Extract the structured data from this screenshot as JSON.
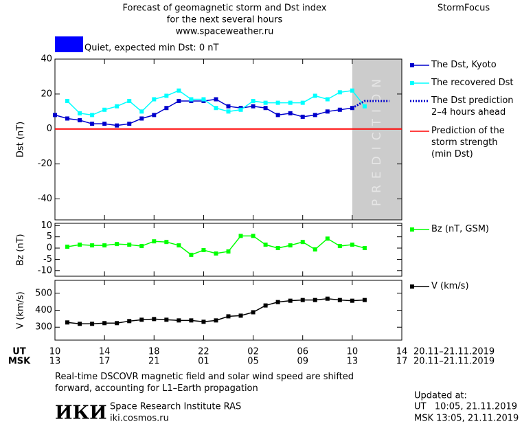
{
  "header": {
    "title_lines": [
      "Forecast of geomagnetic storm and Dst index",
      "for the next several hours",
      "www.spaceweather.ru"
    ],
    "brand": "StormFocus",
    "status": {
      "text": "Quiet, expected min Dst: 0 nT",
      "color": "#0000ff"
    }
  },
  "time_axis": {
    "ut_label": "UT",
    "ut_ticks": [
      {
        "value": 0,
        "label": "10"
      },
      {
        "value": 4,
        "label": "14"
      },
      {
        "value": 8,
        "label": "18"
      },
      {
        "value": 12,
        "label": "22"
      },
      {
        "value": 16,
        "label": "02"
      },
      {
        "value": 20,
        "label": "06"
      },
      {
        "value": 24,
        "label": "10"
      },
      {
        "value": 28,
        "label": "14"
      }
    ],
    "ut_date": "20.11–21.11.2019",
    "msk_label": "MSK",
    "msk_ticks": [
      {
        "value": 0,
        "label": "13"
      },
      {
        "value": 4,
        "label": "17"
      },
      {
        "value": 8,
        "label": "21"
      },
      {
        "value": 12,
        "label": "01"
      },
      {
        "value": 16,
        "label": "05"
      },
      {
        "value": 20,
        "label": "09"
      },
      {
        "value": 24,
        "label": "13"
      },
      {
        "value": 28,
        "label": "17"
      }
    ],
    "msk_date": "20.11–21.11.2019"
  },
  "chart_data": [
    {
      "type": "line",
      "ylabel": "Dst (nT)",
      "xlim": [
        0,
        28
      ],
      "xticks": [
        0,
        4,
        8,
        12,
        16,
        20,
        24,
        28
      ],
      "ylim": [
        -52,
        40
      ],
      "yticks": [
        40,
        20,
        0,
        -20,
        -40
      ],
      "x": [
        0,
        1,
        2,
        3,
        4,
        5,
        6,
        7,
        8,
        9,
        10,
        11,
        12,
        13,
        14,
        15,
        16,
        17,
        18,
        19,
        20,
        21,
        22,
        23,
        24,
        25,
        26,
        27
      ],
      "prediction_region": {
        "label": "PREDICTION",
        "x": [
          24,
          28
        ],
        "color": "#cccccc"
      },
      "reference_line": {
        "name": "Prediction of the\nstorm strength\n(min Dst)",
        "value": 0,
        "color": "#ff0000"
      },
      "series": [
        {
          "name": "The Dst, Kyoto",
          "color": "#0000cc",
          "marker": "square",
          "line_style": "solid",
          "values": [
            8,
            6,
            5,
            3,
            3,
            2,
            3,
            6,
            8,
            12,
            16,
            16,
            16,
            17,
            13,
            12,
            13,
            12,
            8,
            9,
            7,
            8,
            10,
            11,
            12,
            null,
            null,
            null
          ]
        },
        {
          "name": "The recovered Dst",
          "color": "#00ffff",
          "marker": "square",
          "line_style": "solid",
          "values": [
            null,
            16,
            9,
            8,
            11,
            13,
            16,
            10,
            17,
            19,
            22,
            17,
            17,
            12,
            10,
            11,
            16,
            15,
            15,
            15,
            15,
            19,
            17,
            21,
            22,
            13,
            null,
            null
          ]
        },
        {
          "name": "The Dst prediction\n2–4 hours ahead",
          "color": "#0000cc",
          "marker": "none",
          "line_style": "dotted",
          "values": [
            null,
            null,
            null,
            null,
            null,
            null,
            null,
            null,
            null,
            null,
            null,
            null,
            null,
            null,
            null,
            null,
            null,
            null,
            null,
            null,
            null,
            null,
            null,
            null,
            12,
            16,
            16,
            16
          ]
        }
      ]
    },
    {
      "type": "line",
      "ylabel": "Bz (nT)",
      "xlim": [
        0,
        28
      ],
      "xticks": [
        0,
        4,
        8,
        12,
        16,
        20,
        24,
        28
      ],
      "ylim": [
        -12.5,
        11
      ],
      "yticks": [
        10,
        5,
        0,
        -5,
        -10
      ],
      "x": [
        1,
        2,
        3,
        4,
        5,
        6,
        7,
        8,
        9,
        10,
        11,
        12,
        13,
        14,
        15,
        16,
        17,
        18,
        19,
        20,
        21,
        22,
        23,
        24,
        25
      ],
      "series": [
        {
          "name": "Bz (nT, GSM)",
          "color": "#00ff00",
          "marker": "square",
          "line_style": "solid",
          "values": [
            0.6,
            1.5,
            1.2,
            1.2,
            1.8,
            1.5,
            0.9,
            3,
            2.7,
            1.2,
            -3,
            -0.9,
            -2.4,
            -1.5,
            5.4,
            5.4,
            1.5,
            0,
            1.2,
            2.7,
            -0.6,
            4.2,
            0.9,
            1.5,
            0
          ]
        }
      ]
    },
    {
      "type": "line",
      "ylabel": "V (km/s)",
      "xlim": [
        0,
        28
      ],
      "xticks": [
        0,
        4,
        8,
        12,
        16,
        20,
        24,
        28
      ],
      "ylim": [
        224,
        576
      ],
      "yticks": [
        500,
        400,
        300
      ],
      "x": [
        1,
        2,
        3,
        4,
        5,
        6,
        7,
        8,
        9,
        10,
        11,
        12,
        13,
        14,
        15,
        16,
        17,
        18,
        19,
        20,
        21,
        22,
        23,
        24,
        25
      ],
      "series": [
        {
          "name": "V (km/s)",
          "color": "#000000",
          "marker": "square",
          "line_style": "solid",
          "values": [
            328,
            320,
            320,
            324,
            324,
            336,
            344,
            348,
            344,
            340,
            340,
            332,
            340,
            364,
            368,
            388,
            428,
            448,
            456,
            460,
            460,
            468,
            460,
            456,
            460
          ]
        }
      ]
    }
  ],
  "footer": {
    "note": "Real-time DSCOVR magnetic field and solar wind speed are shifted\nforward, accounting for L1–Earth propagation",
    "logo": "ИКИ",
    "institute": "Space Research Institute RAS",
    "site": "iki.cosmos.ru",
    "updated_label": "Updated at:",
    "updated_ut": "UT   10:05, 21.11.2019",
    "updated_msk": "MSK 13:05, 21.11.2019"
  }
}
